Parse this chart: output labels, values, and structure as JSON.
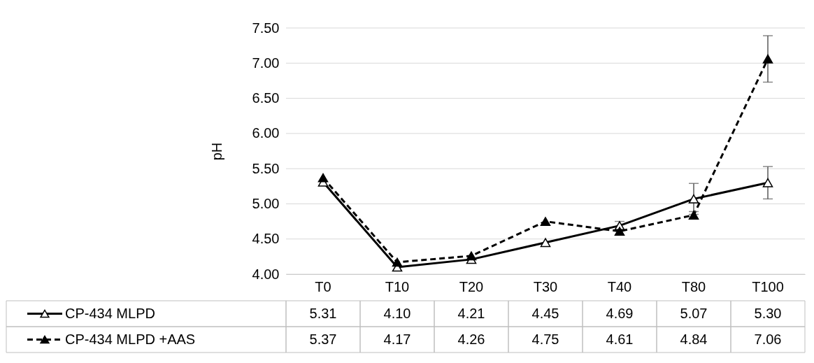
{
  "chart_data": {
    "type": "line",
    "ylabel": "pH",
    "categories": [
      "T0",
      "T10",
      "T20",
      "T30",
      "T40",
      "T80",
      "T100"
    ],
    "series": [
      {
        "name": "CP-434 MLPD",
        "color": "#000000",
        "line_style": "solid",
        "marker": "triangle",
        "values": [
          5.31,
          4.1,
          4.21,
          4.45,
          4.69,
          5.07,
          5.3
        ],
        "value_labels": [
          "5.31",
          "4.10",
          "4.21",
          "4.45",
          "4.69",
          "5.07",
          "5.30"
        ],
        "errors": [
          null,
          null,
          null,
          null,
          0.06,
          0.22,
          0.23
        ]
      },
      {
        "name": "CP-434 MLPD +AAS",
        "color": "#000000",
        "line_style": "dashed",
        "marker": "triangle",
        "values": [
          5.37,
          4.17,
          4.26,
          4.75,
          4.61,
          4.84,
          7.06
        ],
        "value_labels": [
          "5.37",
          "4.17",
          "4.26",
          "4.75",
          "4.61",
          "4.84",
          "7.06"
        ],
        "errors": [
          null,
          null,
          null,
          null,
          null,
          0.05,
          0.33
        ]
      }
    ],
    "ylim": [
      4.0,
      7.5
    ],
    "yticks": [
      {
        "value": 4.0,
        "label": "4.00"
      },
      {
        "value": 4.5,
        "label": "4.50"
      },
      {
        "value": 5.0,
        "label": "5.00"
      },
      {
        "value": 5.5,
        "label": "5.50"
      },
      {
        "value": 6.0,
        "label": "6.00"
      },
      {
        "value": 6.5,
        "label": "6.50"
      },
      {
        "value": 7.0,
        "label": "7.00"
      },
      {
        "value": 7.5,
        "label": "7.50"
      }
    ],
    "grid": "y",
    "legend": "bottom left"
  }
}
